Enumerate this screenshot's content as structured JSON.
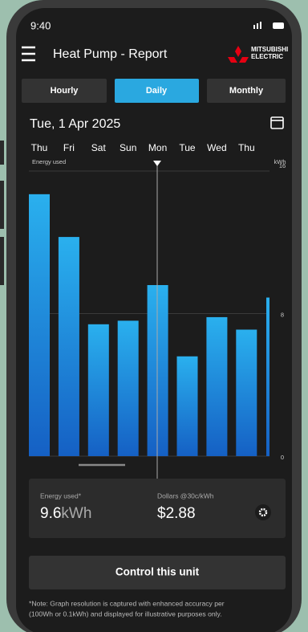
{
  "status_bar": {
    "time": "9:40"
  },
  "header": {
    "title": "Heat Pump - Report",
    "brand": [
      "MITSUBISHI",
      "ELECTRIC"
    ]
  },
  "tabs": [
    "Hourly",
    "Daily",
    "Monthly"
  ],
  "date": "Tue, 1 Apr 2025",
  "chart": {
    "type": "bar",
    "y_label": "Energy used",
    "unit": "kWh",
    "categories": [
      "Thu",
      "Fri",
      "Sat",
      "Sun",
      "Mon",
      "Tue",
      "Wed",
      "Thu",
      null
    ],
    "values": [
      14.7,
      12.3,
      7.4,
      7.6,
      9.6,
      5.6,
      7.8,
      7.1,
      8.9
    ],
    "ylim": [
      0,
      16
    ],
    "yticks": [
      0,
      8,
      16
    ],
    "grid": true,
    "color": "#1e8fe0"
  },
  "summary": {
    "energy_label": "Energy used*",
    "energy_value": "9.6",
    "energy_unit": "kWh",
    "cost_label": "Dollars @30c/kWh",
    "cost_value": "$2.88"
  },
  "button": "Control this unit",
  "note": [
    "*Note: Graph resolution is captured with enhanced accuracy per",
    "(100Wh or 0.1kWh) and displayed for illustrative purposes only."
  ]
}
